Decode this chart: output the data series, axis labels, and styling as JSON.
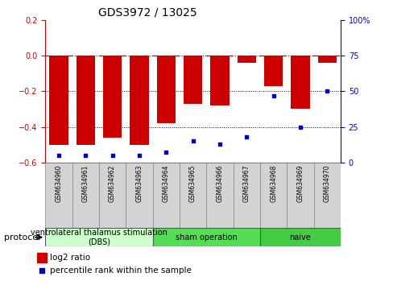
{
  "title": "GDS3972 / 13025",
  "samples": [
    "GSM634960",
    "GSM634961",
    "GSM634962",
    "GSM634963",
    "GSM634964",
    "GSM634965",
    "GSM634966",
    "GSM634967",
    "GSM634968",
    "GSM634969",
    "GSM634970"
  ],
  "log2_ratio": [
    -0.5,
    -0.5,
    -0.46,
    -0.5,
    -0.38,
    -0.27,
    -0.28,
    -0.04,
    -0.17,
    -0.3,
    -0.04
  ],
  "percentile_rank": [
    5,
    5,
    5,
    5,
    7,
    15,
    13,
    18,
    47,
    25,
    50
  ],
  "bar_color": "#cc0000",
  "dot_color": "#0000cc",
  "ylim_left": [
    -0.6,
    0.2
  ],
  "ylim_right": [
    0,
    100
  ],
  "right_ticks": [
    0,
    25,
    50,
    75,
    100
  ],
  "right_tick_labels": [
    "0",
    "25",
    "50",
    "75",
    "100%"
  ],
  "left_ticks": [
    -0.6,
    -0.4,
    -0.2,
    0.0,
    0.2
  ],
  "hline_y": 0,
  "dotted_lines": [
    -0.2,
    -0.4
  ],
  "protocol_groups": [
    {
      "label": "ventrolateral thalamus stimulation\n(DBS)",
      "start": 0,
      "end": 3,
      "color": "#ccffcc"
    },
    {
      "label": "sham operation",
      "start": 4,
      "end": 7,
      "color": "#55dd55"
    },
    {
      "label": "naive",
      "start": 8,
      "end": 10,
      "color": "#44cc44"
    }
  ],
  "legend_bar_label": "log2 ratio",
  "legend_dot_label": "percentile rank within the sample",
  "protocol_label": "protocol",
  "title_fontsize": 10,
  "tick_fontsize": 7,
  "sample_fontsize": 5.5,
  "proto_fontsize": 7,
  "legend_fontsize": 7.5
}
